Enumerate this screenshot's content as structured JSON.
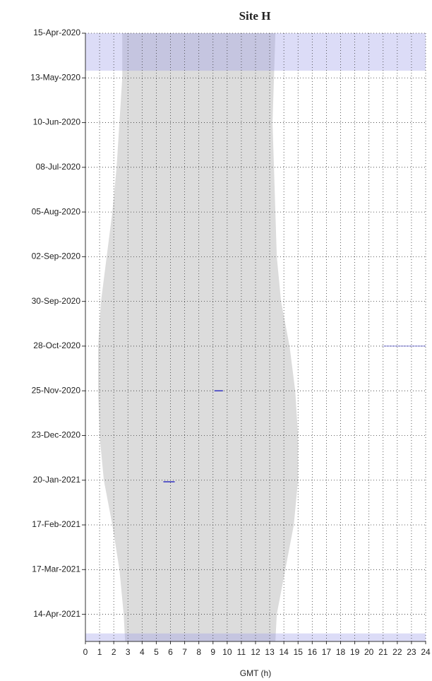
{
  "chart_data": {
    "type": "daylight",
    "title": "Site H",
    "x_label": "GMT (h)",
    "xlim": [
      0,
      24
    ],
    "xticks": [
      0,
      1,
      2,
      3,
      4,
      5,
      6,
      7,
      8,
      9,
      10,
      11,
      12,
      13,
      14,
      15,
      16,
      17,
      18,
      19,
      20,
      21,
      22,
      23,
      24
    ],
    "ylim": [
      0,
      381
    ],
    "yticks": [
      {
        "value": 0,
        "label": "15-Apr-2020"
      },
      {
        "value": 28,
        "label": "13-May-2020"
      },
      {
        "value": 56,
        "label": "10-Jun-2020"
      },
      {
        "value": 84,
        "label": "08-Jul-2020"
      },
      {
        "value": 112,
        "label": "05-Aug-2020"
      },
      {
        "value": 140,
        "label": "02-Sep-2020"
      },
      {
        "value": 168,
        "label": "30-Sep-2020"
      },
      {
        "value": 196,
        "label": "28-Oct-2020"
      },
      {
        "value": 224,
        "label": "25-Nov-2020"
      },
      {
        "value": 252,
        "label": "23-Dec-2020"
      },
      {
        "value": 280,
        "label": "20-Jan-2021"
      },
      {
        "value": 308,
        "label": "17-Feb-2021"
      },
      {
        "value": 336,
        "label": "17-Mar-2021"
      },
      {
        "value": 364,
        "label": "14-Apr-2021"
      }
    ],
    "grid": true,
    "daylight": {
      "color": "#dcdcdc",
      "day": [
        0,
        28,
        56,
        84,
        112,
        140,
        168,
        196,
        224,
        252,
        280,
        308,
        336,
        364,
        381
      ],
      "sunrise": [
        2.6,
        2.6,
        2.4,
        2.2,
        1.9,
        1.5,
        1.1,
        0.9,
        0.9,
        1.0,
        1.3,
        1.9,
        2.4,
        2.7,
        2.8
      ],
      "sunset": [
        13.4,
        13.3,
        13.2,
        13.3,
        13.4,
        13.5,
        13.8,
        14.4,
        14.8,
        15.0,
        15.0,
        14.7,
        14.1,
        13.5,
        13.4
      ]
    },
    "bands": {
      "color": "#9c9ce8",
      "items": [
        {
          "start_day": 0,
          "end_day": 23.5,
          "start": 0,
          "end": 24
        },
        {
          "start_day": 376,
          "end_day": 381,
          "start": 0,
          "end": 24
        }
      ]
    },
    "detections": {
      "color": "#3030c0",
      "items": [
        {
          "day": 196,
          "start": 21,
          "end": 24
        },
        {
          "day": 224,
          "start": 9.1,
          "end": 9.7
        },
        {
          "day": 281,
          "start": 5.5,
          "end": 6.3
        }
      ]
    }
  }
}
